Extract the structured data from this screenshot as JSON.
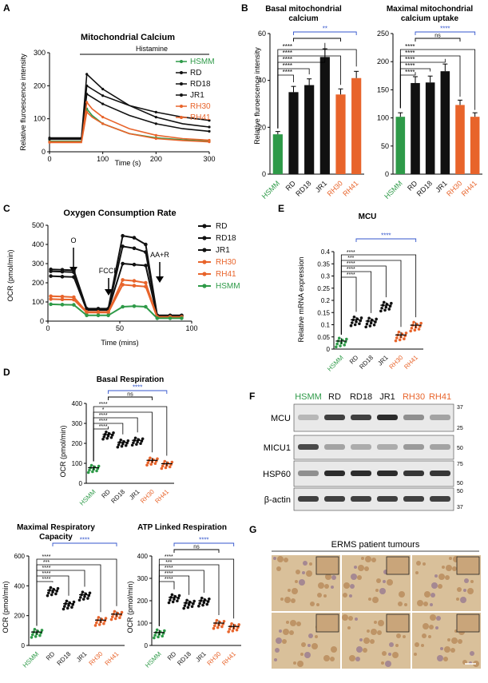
{
  "panel_labels": [
    "A",
    "B",
    "C",
    "D",
    "E",
    "F",
    "G"
  ],
  "colors": {
    "hsmm": "#2e9a48",
    "rh": "#e8642b",
    "black": "#111111",
    "blue": "#3355cc"
  },
  "panelA": {
    "title": "Mitochondrial Calcium",
    "annotation": "Histamine",
    "xlabel": "Time (s)",
    "ylabel": "Relative fluroescence intensity",
    "legend": [
      "HSMM",
      "RD",
      "RD18",
      "JR1",
      "RH30",
      "RH41"
    ]
  },
  "panelB1": {
    "title_line1": "Basal mitochondrial",
    "title_line2": "calcium",
    "ylabel": "Relative fluroescence intensity"
  },
  "panelB2": {
    "title_line1": "Maximal mitochondrial",
    "title_line2": "calcium uptake"
  },
  "panelC": {
    "title": "Oxygen Consumption Rate",
    "xlabel": "Time (mins)",
    "ylabel": "OCR (pmol/min)",
    "marker_o": "O",
    "marker_fccp": "FCCP",
    "marker_aar": "AA+R",
    "legend": [
      "RD",
      "RD18",
      "JR1",
      "RH30",
      "RH41",
      "HSMM"
    ]
  },
  "panelD1": {
    "title": "Basal Respiration",
    "ylabel": "OCR (pmol/min)"
  },
  "panelD2": {
    "title_line1": "Maximal Respiratory",
    "title_line2": "Capacity",
    "ylabel": "OCR (pmol/min)"
  },
  "panelD3": {
    "title": "ATP Linked Respiration",
    "ylabel": "OCR (pmol/min)"
  },
  "panelE": {
    "title": "MCU",
    "ylabel": "Relative mRNA expression"
  },
  "panelF": {
    "lanes": [
      "HSMM",
      "RD",
      "RD18",
      "JR1",
      "RH30",
      "RH41"
    ],
    "rows": [
      {
        "label": "MCU",
        "markers": [
          "37",
          "25"
        ]
      },
      {
        "label": "MICU1",
        "markers": [
          "50"
        ]
      },
      {
        "label": "HSP60",
        "markers": [
          "75",
          "50"
        ]
      },
      {
        "label": "β-actin",
        "markers": [
          "50",
          "37"
        ]
      }
    ]
  },
  "panelG": {
    "title": "ERMS patient tumours"
  },
  "cell_lines": [
    "HSMM",
    "RD",
    "RD18",
    "JR1",
    "RH30",
    "RH41"
  ],
  "sig": {
    "four": "****",
    "three": "***",
    "one": "*",
    "two": "**",
    "ns": "ns"
  },
  "chart_data": [
    {
      "panel": "A",
      "type": "line",
      "title": "Mitochondrial Calcium",
      "xlabel": "Time (s)",
      "ylabel": "Relative fluroescence intensity",
      "xlim": [
        0,
        300
      ],
      "ylim": [
        0,
        300
      ],
      "series": [
        {
          "name": "HSMM",
          "x": [
            0,
            60,
            70,
            80,
            100,
            150,
            200,
            250,
            300
          ],
          "y": [
            32,
            32,
            130,
            110,
            85,
            55,
            42,
            36,
            32
          ]
        },
        {
          "name": "RD",
          "x": [
            0,
            60,
            70,
            80,
            100,
            150,
            200,
            250,
            300
          ],
          "y": [
            42,
            42,
            235,
            220,
            190,
            140,
            105,
            85,
            75
          ]
        },
        {
          "name": "RD18",
          "x": [
            0,
            60,
            70,
            80,
            100,
            150,
            200,
            250,
            300
          ],
          "y": [
            40,
            40,
            200,
            190,
            170,
            140,
            120,
            105,
            95
          ]
        },
        {
          "name": "JR1",
          "x": [
            0,
            60,
            70,
            80,
            100,
            150,
            200,
            250,
            300
          ],
          "y": [
            38,
            38,
            175,
            165,
            145,
            110,
            85,
            70,
            62
          ]
        },
        {
          "name": "RH30",
          "x": [
            0,
            60,
            70,
            80,
            100,
            150,
            200,
            250,
            300
          ],
          "y": [
            30,
            30,
            150,
            130,
            105,
            70,
            50,
            40,
            35
          ]
        },
        {
          "name": "RH41",
          "x": [
            0,
            60,
            70,
            80,
            100,
            150,
            200,
            250,
            300
          ],
          "y": [
            28,
            28,
            120,
            105,
            85,
            55,
            40,
            34,
            30
          ]
        }
      ]
    },
    {
      "panel": "B1",
      "type": "bar",
      "title": "Basal mitochondrial calcium",
      "categories": [
        "HSMM",
        "RD",
        "RD18",
        "JR1",
        "RH30",
        "RH41"
      ],
      "values": [
        17,
        35,
        38,
        50,
        34,
        41
      ],
      "ylim": [
        0,
        60
      ]
    },
    {
      "panel": "B2",
      "type": "bar",
      "title": "Maximal mitochondrial calcium uptake",
      "categories": [
        "HSMM",
        "RD",
        "RD18",
        "JR1",
        "RH30",
        "RH41"
      ],
      "values": [
        102,
        162,
        163,
        183,
        123,
        102
      ],
      "ylim": [
        0,
        250
      ]
    },
    {
      "panel": "C",
      "type": "line",
      "title": "Oxygen Consumption Rate",
      "xlabel": "Time (mins)",
      "ylabel": "OCR (pmol/min)",
      "xlim": [
        0,
        100
      ],
      "ylim": [
        0,
        500
      ],
      "x": [
        2,
        10,
        18,
        27,
        35,
        42,
        52,
        60,
        68,
        76,
        85,
        93
      ],
      "series": [
        {
          "name": "RD",
          "y": [
            270,
            268,
            265,
            65,
            65,
            65,
            445,
            435,
            400,
            30,
            30,
            30
          ]
        },
        {
          "name": "RD18",
          "y": [
            260,
            258,
            255,
            62,
            62,
            62,
            390,
            380,
            360,
            28,
            28,
            28
          ]
        },
        {
          "name": "JR1",
          "y": [
            235,
            232,
            230,
            58,
            58,
            58,
            300,
            295,
            290,
            25,
            25,
            25
          ]
        },
        {
          "name": "RH30",
          "y": [
            130,
            128,
            125,
            48,
            48,
            48,
            215,
            210,
            200,
            22,
            22,
            22
          ]
        },
        {
          "name": "RH41",
          "y": [
            115,
            113,
            112,
            45,
            45,
            45,
            190,
            185,
            180,
            20,
            20,
            20
          ]
        },
        {
          "name": "HSMM",
          "y": [
            88,
            86,
            85,
            30,
            30,
            30,
            75,
            78,
            75,
            15,
            15,
            15
          ]
        }
      ]
    },
    {
      "panel": "D1",
      "type": "scatter",
      "title": "Basal Respiration",
      "categories": [
        "HSMM",
        "RD",
        "RD18",
        "JR1",
        "RH30",
        "RH41"
      ],
      "values": [
        78,
        245,
        205,
        215,
        115,
        98
      ],
      "ylim": [
        0,
        400
      ]
    },
    {
      "panel": "D2",
      "type": "scatter",
      "title": "Maximal Respiratory Capacity",
      "categories": [
        "HSMM",
        "RD",
        "RD18",
        "JR1",
        "RH30",
        "RH41"
      ],
      "values": [
        90,
        370,
        280,
        340,
        170,
        210
      ],
      "ylim": [
        0,
        600
      ]
    },
    {
      "panel": "D3",
      "type": "scatter",
      "title": "ATP Linked Respiration",
      "categories": [
        "HSMM",
        "RD",
        "RD18",
        "JR1",
        "RH30",
        "RH41"
      ],
      "values": [
        58,
        215,
        190,
        200,
        100,
        85
      ],
      "ylim": [
        0,
        400
      ]
    },
    {
      "panel": "E",
      "type": "scatter",
      "title": "MCU",
      "categories": [
        "HSMM",
        "RD",
        "RD18",
        "JR1",
        "RH30",
        "RH41"
      ],
      "values": [
        0.033,
        0.12,
        0.115,
        0.18,
        0.058,
        0.098
      ],
      "ylim": [
        0,
        0.4
      ]
    }
  ]
}
